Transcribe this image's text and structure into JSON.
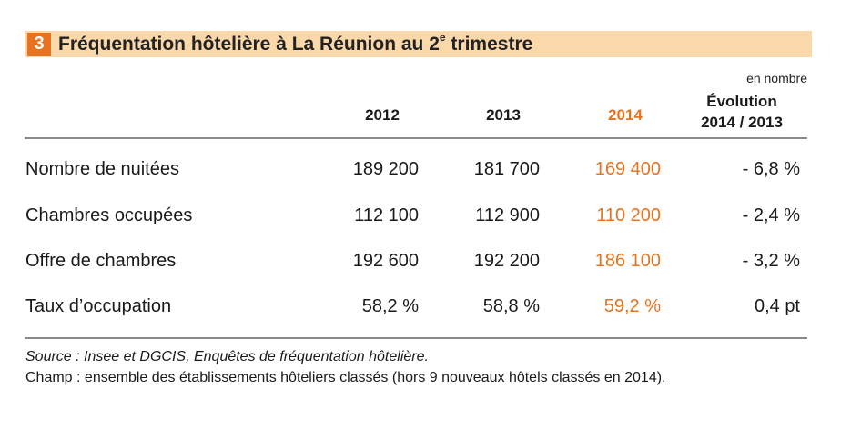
{
  "title": {
    "number": "3",
    "text_before_sup": "Fréquentation hôtelière à La Réunion au 2",
    "sup": "e",
    "text_after_sup": " trimestre"
  },
  "unit_note": "en nombre",
  "columns": {
    "y2012": "2012",
    "y2013": "2013",
    "y2014": "2014",
    "evolution_line1": "Évolution",
    "evolution_line2": "2014 / 2013"
  },
  "rows": [
    {
      "label": "Nombre de nuitées",
      "v2012": "189 200",
      "v2013": "181 700",
      "v2014": "169 400",
      "evolution": "- 6,8 %"
    },
    {
      "label": "Chambres occupées",
      "v2012": "112 100",
      "v2013": "112 900",
      "v2014": "110 200",
      "evolution": "- 2,4 %"
    },
    {
      "label": "Offre de chambres",
      "v2012": "192 600",
      "v2013": "192 200",
      "v2014": "186 100",
      "evolution": "- 3,2 %"
    },
    {
      "label": "Taux d’occupation",
      "v2012": "58,2 %",
      "v2013": "58,8 %",
      "v2014": "59,2 %",
      "evolution": "0,4 pt"
    }
  ],
  "source": "Source : Insee et DGCIS, Enquêtes de fréquentation hôtelière.",
  "champ": "Champ : ensemble des établissements hôteliers classés (hors 9 nouveaux hôtels classés en 2014).",
  "colors": {
    "accent": "#e8731e",
    "title_band": "#fbd8a9"
  }
}
